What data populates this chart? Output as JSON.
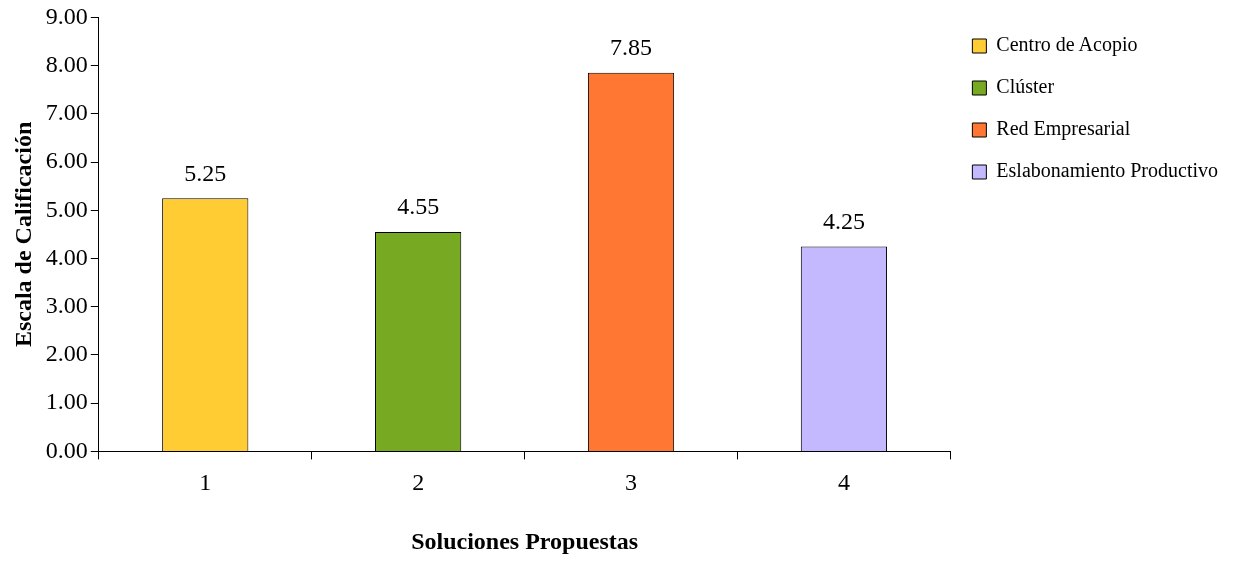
{
  "chart_data": {
    "type": "bar",
    "xlabel": "Soluciones Propuestas",
    "ylabel": "Escala de Calificación",
    "categories": [
      "1",
      "2",
      "3",
      "4"
    ],
    "series": [
      {
        "name": "Centro de Acopio",
        "color": "#ffcc33",
        "values": [
          5.25,
          null,
          null,
          null
        ]
      },
      {
        "name": "Clúster",
        "color": "#77aa22",
        "values": [
          null,
          4.55,
          null,
          null
        ]
      },
      {
        "name": "Red Empresarial",
        "color": "#ff7733",
        "values": [
          null,
          null,
          7.85,
          null
        ]
      },
      {
        "name": "Eslabonamiento Productivo",
        "color": "#c4b8ff",
        "values": [
          null,
          null,
          null,
          4.25
        ]
      }
    ],
    "ylim": [
      0,
      9
    ],
    "yticks": [
      {
        "value": 0,
        "label": "0.00"
      },
      {
        "value": 1,
        "label": "1.00"
      },
      {
        "value": 2,
        "label": "2.00"
      },
      {
        "value": 3,
        "label": "3.00"
      },
      {
        "value": 4,
        "label": "4.00"
      },
      {
        "value": 5,
        "label": "5.00"
      },
      {
        "value": 6,
        "label": "6.00"
      },
      {
        "value": 7,
        "label": "7.00"
      },
      {
        "value": 8,
        "label": "8.00"
      },
      {
        "value": 9,
        "label": "9.00"
      }
    ],
    "grid": false,
    "legend": "right",
    "data_labels": true
  }
}
